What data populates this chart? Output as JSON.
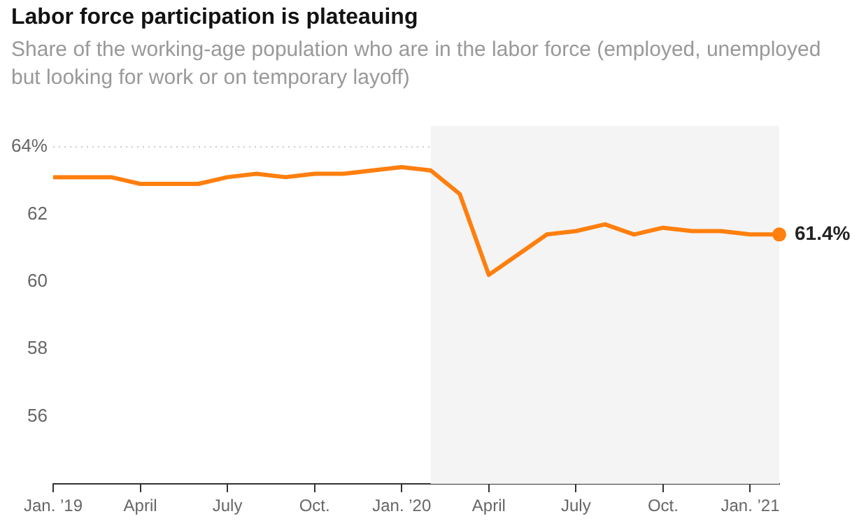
{
  "chart_data": {
    "type": "line",
    "title": "Labor force participation is plateauing",
    "subtitle": "Share of the working-age population who are in the labor force (employed, unemployed but looking for work or on temporary layoff)",
    "x": [
      "2019-01",
      "2019-02",
      "2019-03",
      "2019-04",
      "2019-05",
      "2019-06",
      "2019-07",
      "2019-08",
      "2019-09",
      "2019-10",
      "2019-11",
      "2019-12",
      "2020-01",
      "2020-02",
      "2020-03",
      "2020-04",
      "2020-05",
      "2020-06",
      "2020-07",
      "2020-08",
      "2020-09",
      "2020-10",
      "2020-11",
      "2020-12",
      "2021-01",
      "2021-02"
    ],
    "series": [
      {
        "color": "#ff7f0e",
        "values": [
          63.1,
          63.1,
          63.1,
          62.9,
          62.9,
          62.9,
          63.1,
          63.2,
          63.1,
          63.2,
          63.2,
          63.3,
          63.4,
          63.3,
          62.6,
          60.2,
          60.8,
          61.4,
          61.5,
          61.7,
          61.4,
          61.6,
          61.5,
          61.5,
          61.4,
          61.4
        ]
      }
    ],
    "xlim": [
      "2019-01",
      "2021-02"
    ],
    "xticks": [
      {
        "value": "2019-01",
        "label": "Jan. ’19"
      },
      {
        "value": "2019-04",
        "label": "April"
      },
      {
        "value": "2019-07",
        "label": "July"
      },
      {
        "value": "2019-10",
        "label": "Oct."
      },
      {
        "value": "2020-01",
        "label": "Jan. ’20"
      },
      {
        "value": "2020-04",
        "label": "April"
      },
      {
        "value": "2020-07",
        "label": "July"
      },
      {
        "value": "2020-10",
        "label": "Oct."
      },
      {
        "value": "2021-01",
        "label": "Jan. ’21"
      }
    ],
    "ylim": [
      54,
      64
    ],
    "yticks": [
      {
        "value": 64,
        "label": "64%"
      },
      56,
      58,
      60,
      62
    ],
    "ref_lines": [
      {
        "axis": "y",
        "value": 64,
        "color": "#cccccc",
        "line_style": "dotted"
      }
    ],
    "bands": [
      {
        "axis": "x",
        "from": "2020-02",
        "to": "2021-02",
        "color": "#f4f4f4"
      }
    ],
    "annotations": [
      {
        "text": "61.4%",
        "x": "2021-02",
        "y": 61.4
      }
    ],
    "grid": false,
    "legend": false,
    "marker": "none",
    "line_style": "solid"
  }
}
